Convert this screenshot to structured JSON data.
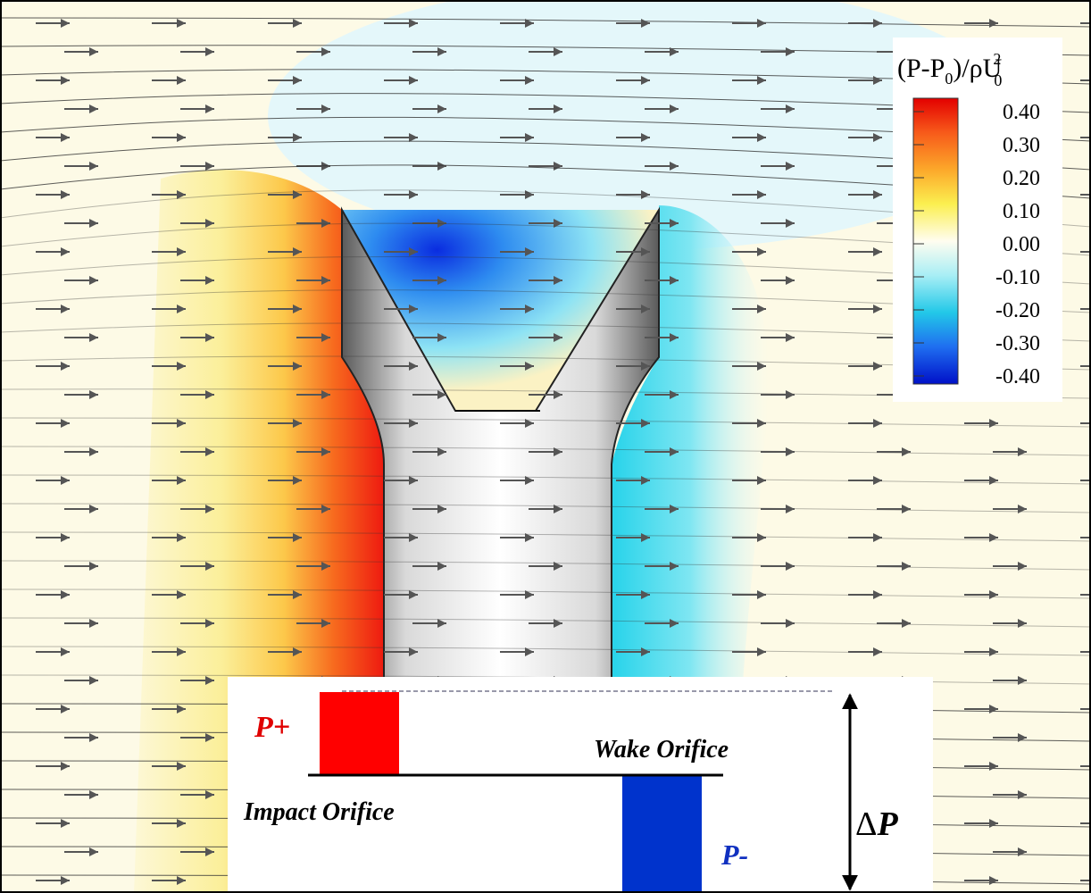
{
  "legend": {
    "title": {
      "before": "(P-P",
      "sub1": "0",
      "middle": ")/ρU",
      "sub2": "0",
      "sup": "2"
    },
    "ticks": [
      "0.40",
      "0.30",
      "0.20",
      "0.10",
      "0.00",
      "-0.10",
      "-0.20",
      "-0.30",
      "-0.40"
    ]
  },
  "inset": {
    "p_plus": "P+",
    "wake": "Wake Orifice",
    "impact": "Impact Orifice",
    "p_minus": "P-",
    "delta_p": {
      "symbol": "Δ",
      "var": "P"
    }
  }
}
